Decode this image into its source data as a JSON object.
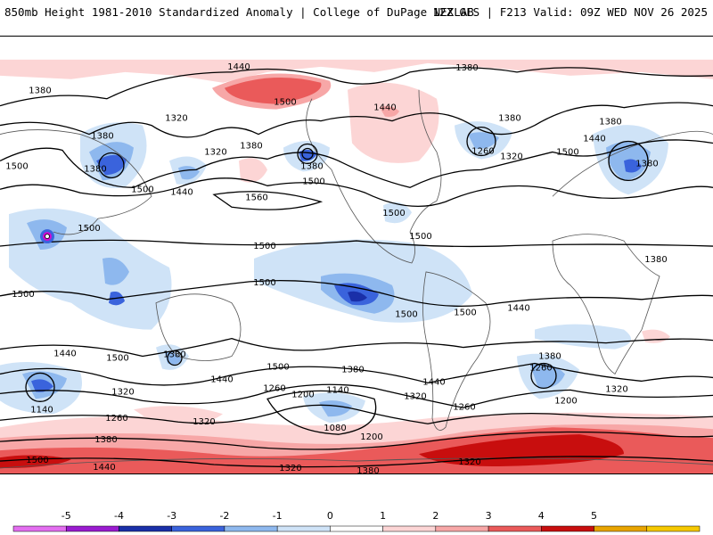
{
  "header": {
    "left": "850mb Height 1981-2010 Standardized Anomaly | College of DuPage NEXLAB",
    "right": "12Z GFS | F213 Valid: 09Z WED NOV 26 2025"
  },
  "colors": {
    "pos1": "#fcd5d5",
    "pos2": "#f7a7a7",
    "pos3": "#ea5a5a",
    "pos4": "#c80e0e",
    "neg1": "#cfe3f7",
    "neg2": "#8eb8ee",
    "neg3": "#3a63dc",
    "neg4": "#1a2fa8",
    "neg5": "#d10ad3",
    "contour": "#000000",
    "land": "#555555"
  },
  "contour_labels": [
    "1440",
    "1380",
    "1380",
    "1500",
    "1320",
    "1380",
    "1320",
    "1380",
    "1440",
    "1380",
    "1500",
    "1440",
    "1560",
    "1380",
    "1260",
    "1380",
    "1320",
    "1500",
    "1500",
    "1440",
    "1380",
    "1380",
    "1500",
    "1500",
    "1500",
    "1500",
    "1500",
    "1500",
    "1500",
    "1500",
    "1500",
    "1440",
    "1380",
    "1500",
    "1380",
    "1440",
    "1320",
    "1140",
    "1260",
    "1380",
    "1500",
    "1440",
    "1380",
    "1260",
    "1200",
    "1140",
    "1320",
    "1080",
    "1200",
    "1260",
    "1320",
    "1440",
    "1380",
    "1260",
    "1200",
    "1320",
    "1320",
    "1320",
    "1440",
    "1380",
    "1500"
  ],
  "colorbar": {
    "ticks": [
      "-5",
      "-4",
      "-3",
      "-2",
      "-1",
      "0",
      "1",
      "2",
      "3",
      "4",
      "5"
    ],
    "colors": [
      "#e36ef0",
      "#9a1bd0",
      "#1a2fa8",
      "#3a63dc",
      "#8eb8ee",
      "#cfe3f7",
      "#ffffff",
      "#fcd5d5",
      "#f7a7a7",
      "#ea5a5a",
      "#c80e0e",
      "#e8a400",
      "#f5c800"
    ]
  }
}
